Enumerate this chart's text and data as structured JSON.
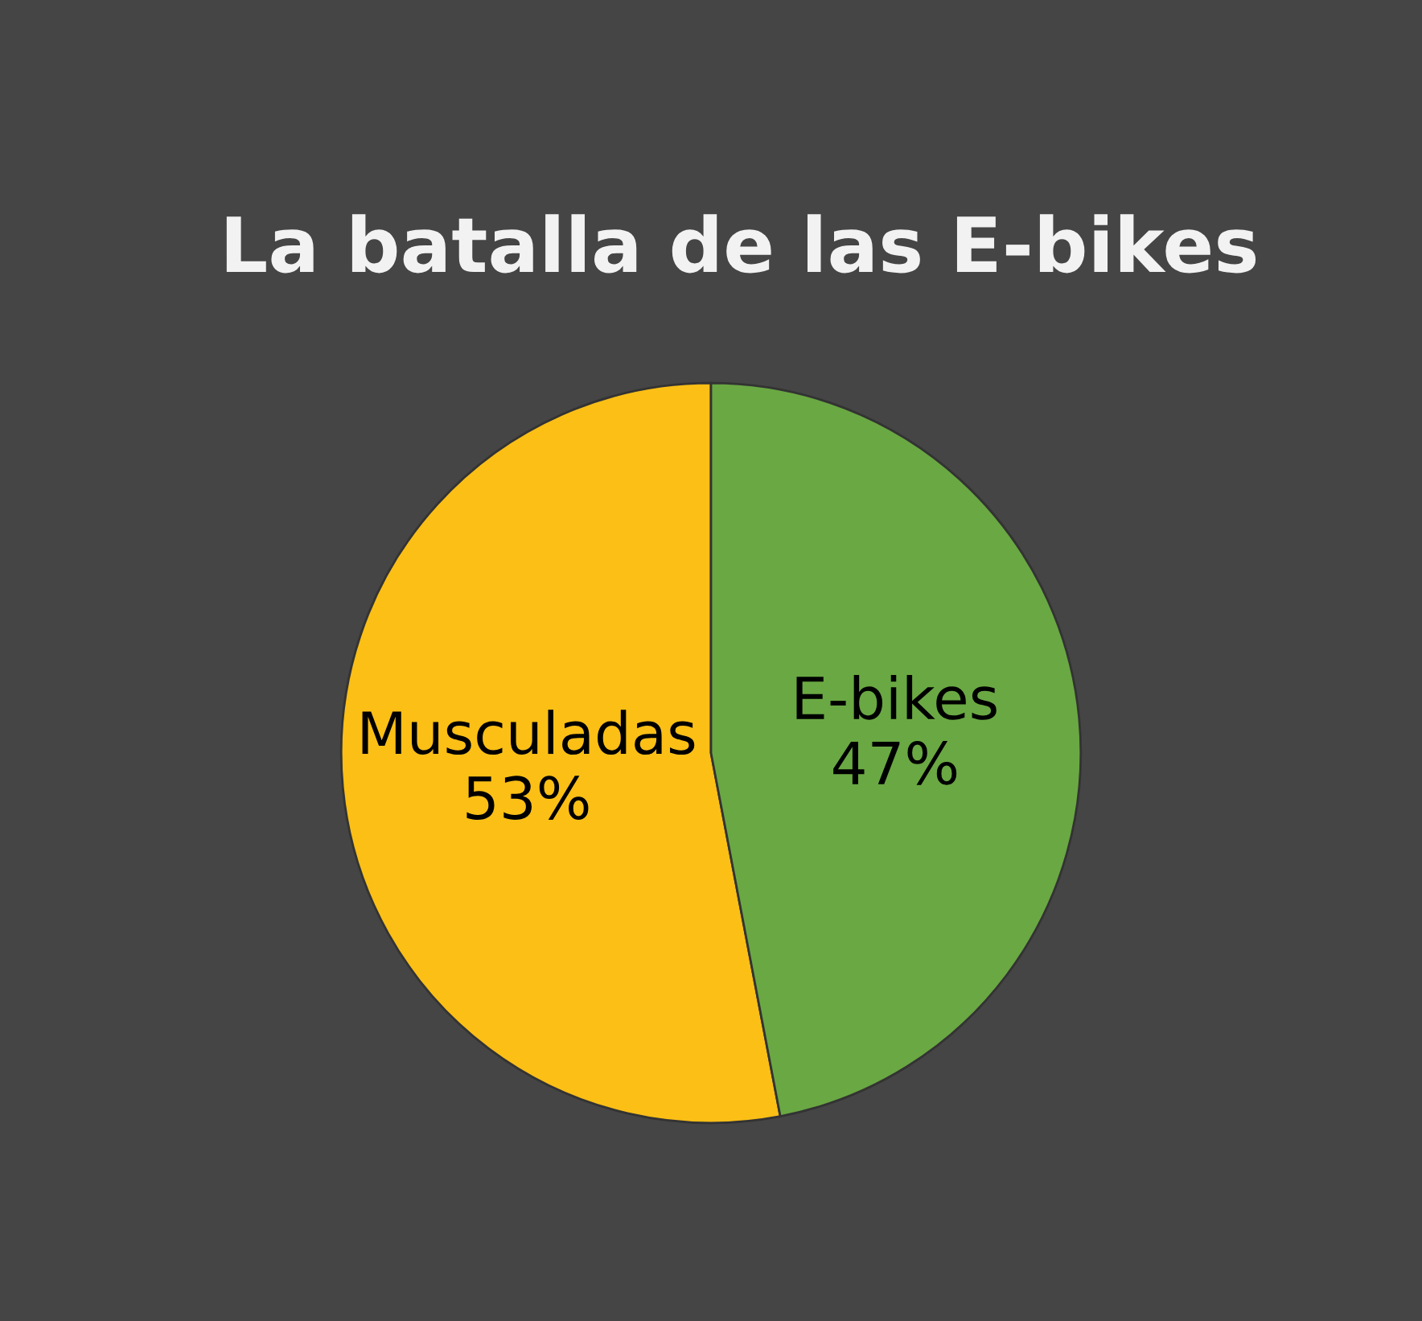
{
  "chart_data": {
    "type": "pie",
    "title": "La batalla de las E-bikes",
    "categories": [
      "Musculadas",
      "E-bikes"
    ],
    "values": [
      53,
      47
    ],
    "value_labels": [
      "53%",
      "47%"
    ],
    "colors": [
      "#fbbf16",
      "#6aa843"
    ],
    "legend": false
  }
}
